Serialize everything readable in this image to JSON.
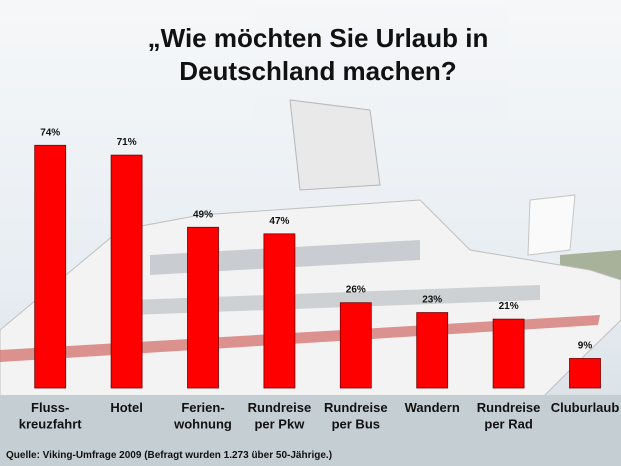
{
  "chart_data": {
    "type": "bar",
    "title": "„Wie möchten Sie Urlaub in\nDeutschland machen?",
    "categories": [
      "Fluss-\nkreuzfahrt",
      "Hotel",
      "Ferien-\nwohnung",
      "Rundreise\nper Pkw",
      "Rundreise\nper Bus",
      "Wandern",
      "Rundreise\nper Rad",
      "Cluburlaub"
    ],
    "values": [
      74,
      71,
      49,
      47,
      26,
      23,
      21,
      9
    ],
    "value_labels": [
      "74%",
      "71%",
      "49%",
      "47%",
      "26%",
      "23%",
      "21%",
      "9%"
    ],
    "color": "#ff0000",
    "source": "Quelle: Viking-Umfrage 2009 (Befragt wurden 1.273 über 50-Jährige.)"
  }
}
